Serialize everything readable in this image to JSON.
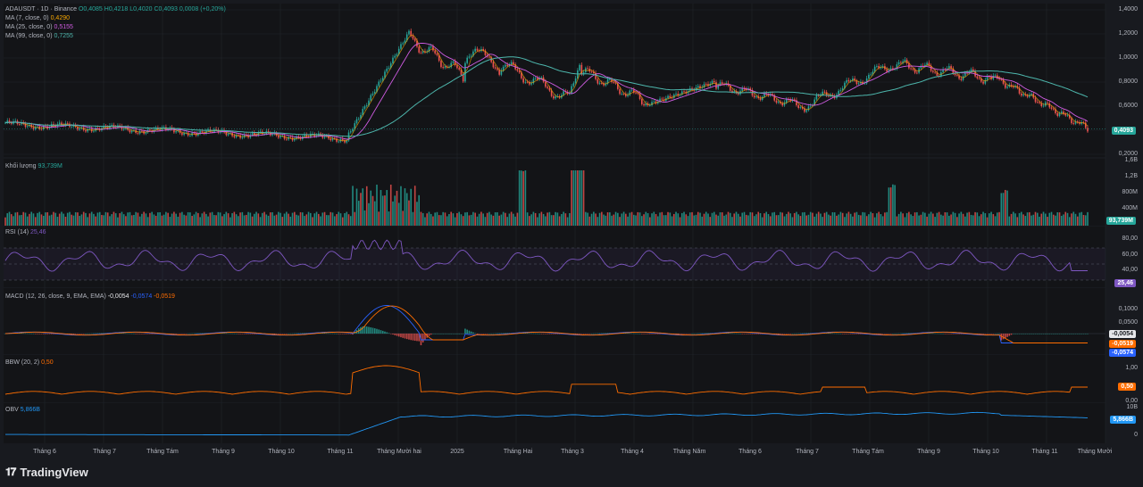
{
  "header": {
    "symbol": "ADAUSDT · 1D · Binance",
    "ohlc_open": "O0,4085",
    "ohlc_high": "H0,4218",
    "ohlc_low": "L0,4020",
    "ohlc_close": "C0,4093",
    "change": "0,0008 (+0,20%)"
  },
  "ma_legends": [
    {
      "label": "MA (7, close, 0)",
      "value": "0,4290",
      "color": "#f7a600"
    },
    {
      "label": "MA (25, close, 0)",
      "value": "0,5155",
      "color": "#d05ce3"
    },
    {
      "label": "MA (99, close, 0)",
      "value": "0,7255",
      "color": "#4db6ac"
    }
  ],
  "volume_legend": {
    "label": "Khối lượng",
    "value": "93,739M"
  },
  "rsi_legend": {
    "label": "RSI (14)",
    "value": "25,46"
  },
  "macd_legend": {
    "label": "MACD (12, 26, close, 9, EMA, EMA)",
    "v1": "-0,0054",
    "v2": "-0,0574",
    "v3": "-0,0519"
  },
  "bbw_legend": {
    "label": "BBW (20, 2)",
    "value": "0,50"
  },
  "obv_legend": {
    "label": "OBV",
    "value": "5,866B"
  },
  "price_axis": [
    "1,4000",
    "1,2000",
    "1,0000",
    "0,8000",
    "0,6000",
    "0,4000",
    "0,2000"
  ],
  "volume_axis": [
    "1,6B",
    "1,2B",
    "800M",
    "400M"
  ],
  "rsi_axis": [
    "80,00",
    "60,00",
    "40,00",
    "20,00"
  ],
  "macd_axis": [
    "0,1000",
    "0,0500"
  ],
  "bbw_axis": [
    "1,00",
    "0,50",
    "0,00"
  ],
  "obv_axis": [
    "10B",
    "0"
  ],
  "badges": {
    "price": "0,4093",
    "volume": "93,739M",
    "rsi": "25,46",
    "macd_hist": "-0,0054",
    "macd_signal": "-0,0519",
    "macd_line": "-0,0574",
    "bbw": "0,50",
    "obv": "5,866B"
  },
  "x_axis": [
    "Tháng 6",
    "Tháng 7",
    "Tháng Tám",
    "Tháng 9",
    "Tháng 10",
    "Tháng 11",
    "Tháng Mười hai",
    "2025",
    "Tháng Hai",
    "Tháng 3",
    "Tháng 4",
    "Tháng Năm",
    "Tháng 6",
    "Tháng 7",
    "Tháng Tám",
    "Tháng 9",
    "Tháng 10",
    "Tháng 11",
    "Tháng Mười"
  ],
  "brand": "TradingView",
  "colors": {
    "up": "#26a69a",
    "down": "#ef5350",
    "ma7": "#f7a600",
    "ma25": "#d05ce3",
    "ma99": "#4db6ac",
    "rsi": "#7e57c2",
    "macd": "#2962ff",
    "signal": "#ff6d00",
    "bbw": "#ff6d00",
    "obv": "#2196f3"
  },
  "chart_data": {
    "type": "line",
    "title": "ADAUSDT · 1D · Binance",
    "x": [
      "Tháng 6",
      "Tháng 7",
      "Tháng Tám",
      "Tháng 9",
      "Tháng 10",
      "Tháng 11",
      "Tháng Mười hai",
      "2025",
      "Tháng Hai",
      "Tháng 3",
      "Tháng 4",
      "Tháng Năm",
      "Tháng 6",
      "Tháng 7",
      "Tháng Tám",
      "Tháng 9",
      "Tháng 10",
      "Tháng 11",
      "Tháng Mười"
    ],
    "series": [
      {
        "values": [
          0.45,
          0.4,
          0.35,
          0.34,
          0.35,
          0.36,
          1.05,
          0.95,
          0.78,
          0.82,
          0.62,
          0.74,
          0.62,
          0.7,
          0.82,
          0.92,
          0.8,
          0.62,
          0.41
        ]
      }
    ],
    "ylim": [
      0.2,
      1.4
    ],
    "indicators": {
      "ma7": 0.429,
      "ma25": 0.5155,
      "ma99": 0.7255,
      "volume_last": "93,739M",
      "rsi": 25.46,
      "macd": -0.0054,
      "macd_line": -0.0574,
      "macd_signal": -0.0519,
      "bbw": 0.5,
      "obv": "5,866B"
    }
  }
}
